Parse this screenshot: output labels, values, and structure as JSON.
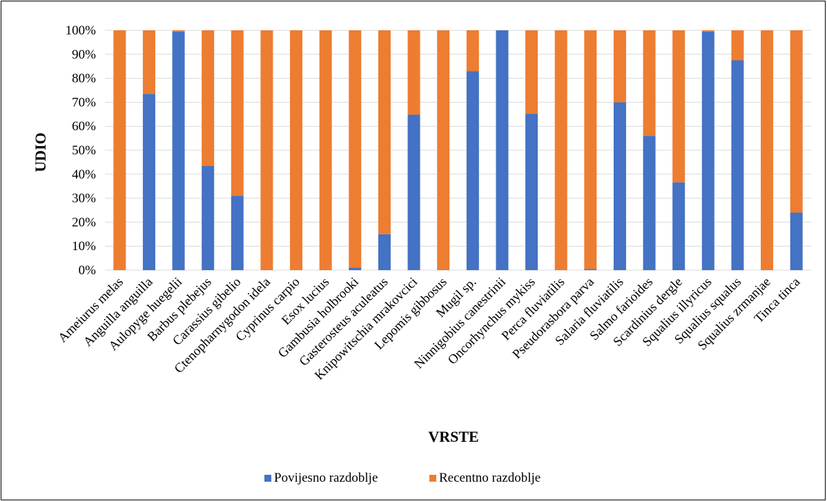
{
  "chart_data": {
    "type": "bar",
    "stacked": "percent",
    "xlabel": "VRSTE",
    "ylabel": "UDIO",
    "ylim": [
      0,
      100
    ],
    "yticks": [
      "0%",
      "10%",
      "20%",
      "30%",
      "40%",
      "50%",
      "60%",
      "70%",
      "80%",
      "90%",
      "100%"
    ],
    "grid": true,
    "legend_position": "bottom",
    "categories": [
      "Ameiurus melas",
      "Anguilla anguilla",
      "Aulopyge huegelii",
      "Barbus plebejus",
      "Carassius gibelio",
      "Ctenopharnygodon idela",
      "Cyprinus carpio",
      "Esox lucius",
      "Gambusia holbrooki",
      "Gasterosteus aculeatus",
      "Knipowitschia mrakovcici",
      "Lepomis gibbosus",
      "Mugil sp.",
      "Ninnigobius canestrinii",
      "Oncorhynchus mykiss",
      "Perca fluviatilis",
      "Pseudorasbora parva",
      "Salaria fluviatilis",
      "Salmo farioides",
      "Scardinius dergle",
      "Squalius illyricus",
      "Squalius squalus",
      "Squalius zrmanjae",
      "Tinca tinca"
    ],
    "series": [
      {
        "name": "Povijesno razdoblje",
        "color": "#4472C4",
        "values": [
          0,
          73.5,
          99.5,
          43.5,
          31,
          0,
          0,
          0,
          1,
          15,
          64.8,
          0,
          83,
          100,
          65.2,
          0,
          0.5,
          70,
          56,
          36.6,
          99.5,
          87.5,
          0,
          24
        ]
      },
      {
        "name": "Recentno razdoblje",
        "color": "#ED7D31",
        "values": [
          100,
          26.5,
          0.5,
          56.5,
          69,
          100,
          100,
          100,
          99,
          85,
          35.2,
          100,
          17,
          0,
          34.8,
          100,
          99.5,
          30,
          44,
          63.4,
          0.5,
          12.5,
          100,
          76
        ]
      }
    ]
  }
}
